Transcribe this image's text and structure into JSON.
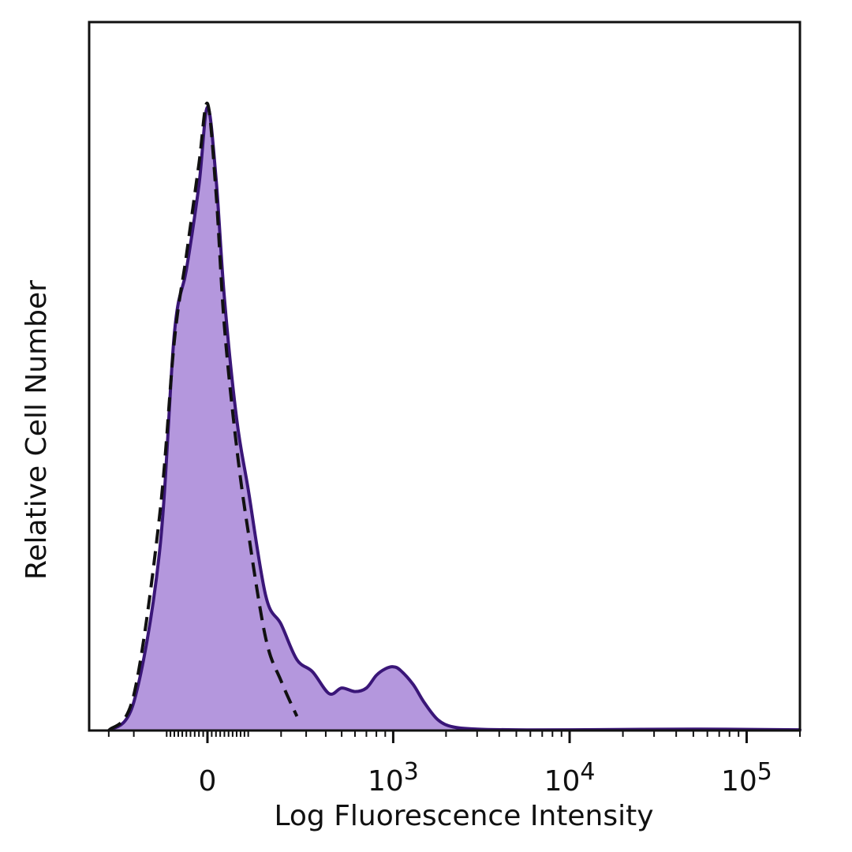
{
  "chart_data": {
    "type": "area",
    "xlabel": "Log Fluorescence Intensity",
    "ylabel": "Relative Cell Number",
    "x_scale": "biexponential",
    "x_tick_labels": [
      {
        "value": 0,
        "base": "0",
        "exp": ""
      },
      {
        "value": 1000,
        "base": "10",
        "exp": "3"
      },
      {
        "value": 10000,
        "base": "10",
        "exp": "4"
      },
      {
        "value": 100000,
        "base": "10",
        "exp": "5"
      }
    ],
    "y_tick_labels": [],
    "grid": false,
    "legend": "none",
    "series": [
      {
        "style": "filled-solid",
        "fill_color": "#b497dd",
        "line_color": "#3a1678",
        "x": [
          -300,
          -200,
          -120,
          -80,
          -50,
          -20,
          0,
          20,
          40,
          70,
          100,
          150,
          200,
          260,
          330,
          420,
          500,
          600,
          700,
          800,
          900,
          1000,
          1100,
          1300,
          1500,
          1800,
          2200,
          3000,
          5000,
          10000,
          50000,
          200000
        ],
        "y": [
          0,
          0.04,
          0.25,
          0.56,
          0.65,
          0.77,
          0.88,
          0.78,
          0.61,
          0.44,
          0.34,
          0.19,
          0.15,
          0.1,
          0.083,
          0.052,
          0.06,
          0.055,
          0.06,
          0.078,
          0.087,
          0.09,
          0.085,
          0.065,
          0.04,
          0.015,
          0.005,
          0.002,
          0.001,
          0.001,
          0.002,
          0.001
        ]
      },
      {
        "style": "dashed",
        "fill_color": "none",
        "line_color": "#111111",
        "x": [
          -300,
          -200,
          -120,
          -80,
          -50,
          -20,
          0,
          20,
          40,
          70,
          100,
          150,
          200,
          260
        ],
        "y": [
          0,
          0.05,
          0.3,
          0.55,
          0.67,
          0.8,
          0.885,
          0.76,
          0.57,
          0.4,
          0.28,
          0.13,
          0.07,
          0.02
        ]
      }
    ],
    "colors": {
      "frame": "#111111",
      "fill": "#b497dd",
      "outline": "#3a1678",
      "control_line": "#111111"
    }
  }
}
